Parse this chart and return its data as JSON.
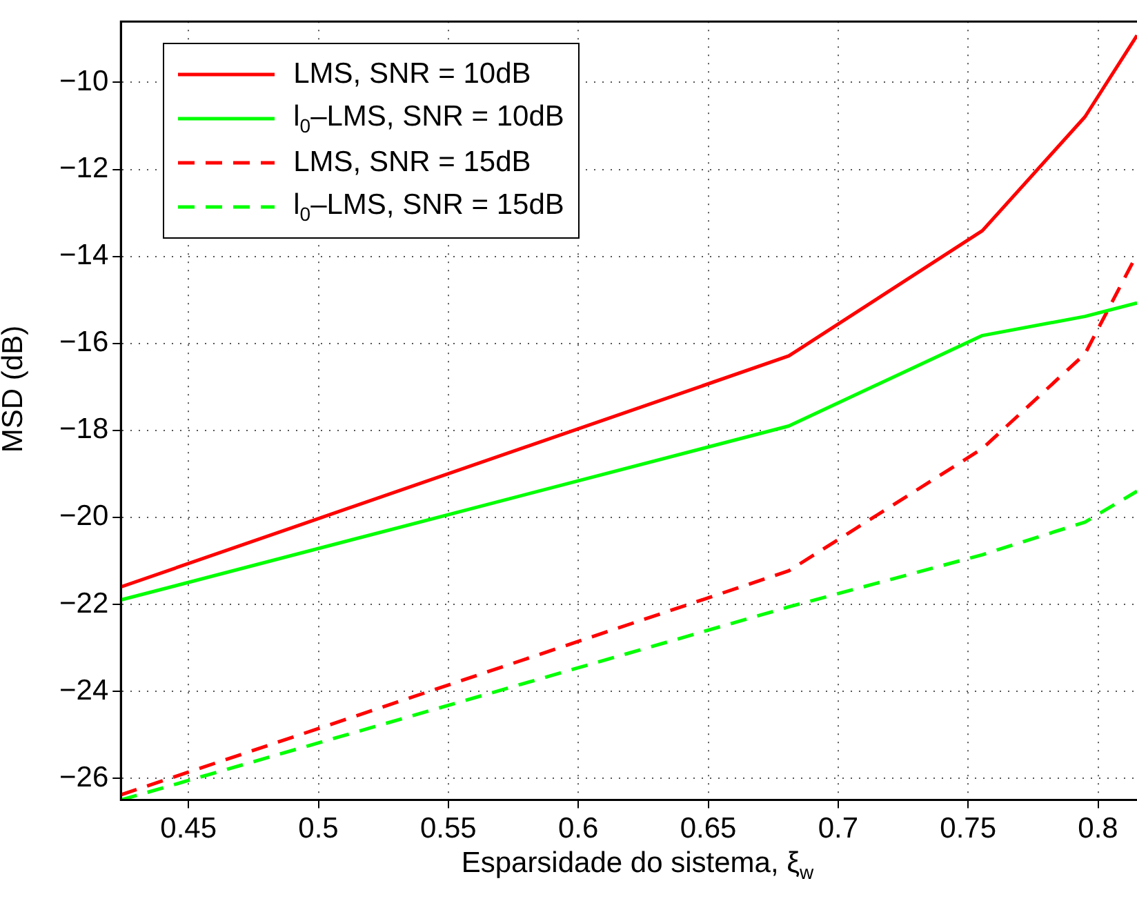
{
  "chart_data": {
    "type": "line",
    "xlabel": "Esparsidade do sistema, ξ$_{w}$",
    "ylabel": "MSD (dB)",
    "x": [
      0.424,
      0.681,
      0.7555,
      0.795,
      0.815
    ],
    "series": [
      {
        "name": "LMS, SNR = 10dB",
        "color": "#ff0000",
        "line_style": "solid",
        "values": [
          -21.6,
          -16.29,
          -13.41,
          -10.79,
          -8.92
        ]
      },
      {
        "name": "l$_{0}$–LMS, SNR = 10dB",
        "color": "#00ff00",
        "line_style": "solid",
        "values": [
          -21.9,
          -17.9,
          -15.82,
          -15.38,
          -15.07
        ]
      },
      {
        "name": "LMS, SNR = 15dB",
        "color": "#ff0000",
        "line_style": "dashed",
        "values": [
          -26.38,
          -21.23,
          -18.42,
          -16.24,
          -13.95
        ]
      },
      {
        "name": "l$_{0}$–LMS, SNR = 15dB",
        "color": "#00ff00",
        "line_style": "dashed",
        "values": [
          -26.5,
          -22.06,
          -20.86,
          -20.11,
          -19.4
        ]
      }
    ],
    "xlim": [
      0.424,
      0.815
    ],
    "ylim": [
      -26.5,
      -8.6
    ],
    "xticks": [
      0.45,
      0.5,
      0.55,
      0.6,
      0.65,
      0.7,
      0.75,
      0.8
    ],
    "yticks": [
      -26,
      -24,
      -22,
      -20,
      -18,
      -16,
      -14,
      -12,
      -10
    ],
    "grid": true,
    "legend": "top left",
    "marker": "none"
  }
}
